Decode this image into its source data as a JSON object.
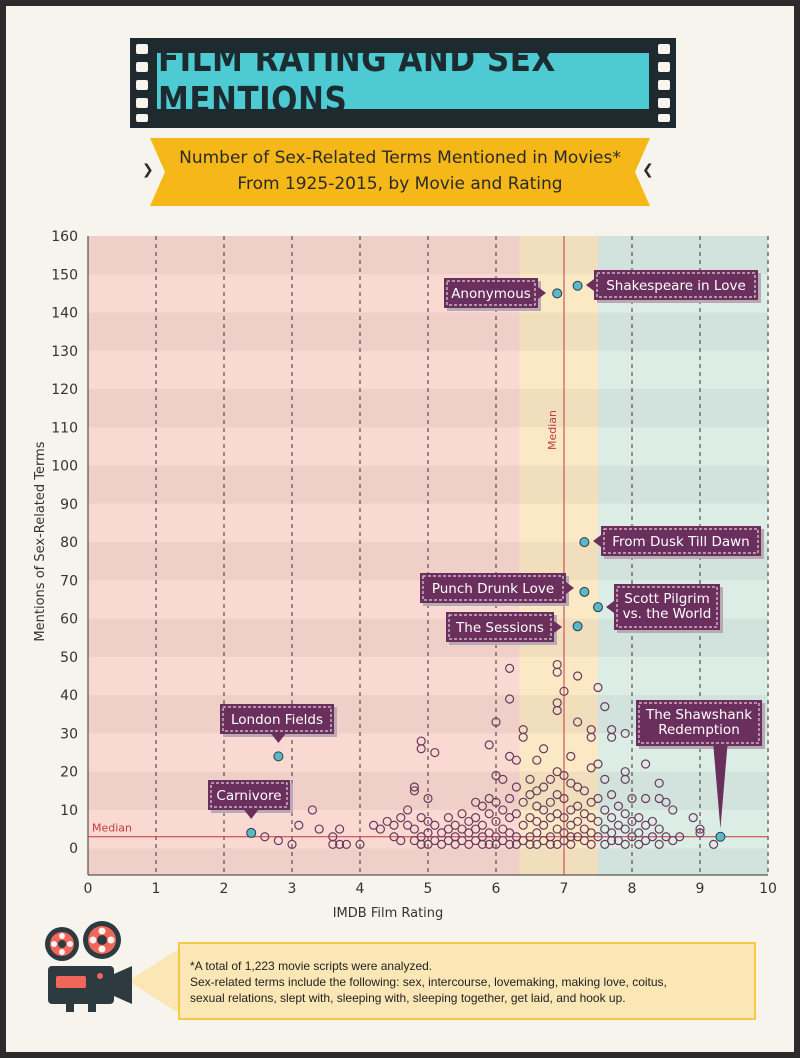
{
  "title": "FILM RATING AND SEX MENTIONS",
  "subtitle_line1": "Number of Sex-Related Terms Mentioned in Movies*",
  "subtitle_line2": "From 1925-2015, by Movie and Rating",
  "footnote_line1": "*A total of 1,223 movie scripts were analyzed.",
  "footnote_line2": "Sex-related terms include the following: sex, intercourse, lovemaking, making love, coitus,",
  "footnote_line3": "sexual relations, slept with, sleeping with, sleeping together, get laid, and hook up.",
  "colors": {
    "zone_low": "#fbd9d3",
    "zone_mid": "#fbe9c6",
    "zone_high": "#dcede6",
    "point_stroke": "#6a3a5c",
    "highlight_point": "#5bb8c9",
    "callout": "#6b2f5e",
    "median_line": "#c23b3b",
    "banner": "#4ecad2"
  },
  "chart_data": {
    "type": "scatter",
    "xlabel": "IMDB Film Rating",
    "ylabel": "Mentions of Sex-Related Terms",
    "xlim": [
      0,
      10
    ],
    "ylim": [
      -7,
      160
    ],
    "x_ticks": [
      0,
      1,
      2,
      3,
      4,
      5,
      6,
      7,
      8,
      9,
      10
    ],
    "y_ticks": [
      0,
      10,
      20,
      30,
      40,
      50,
      60,
      70,
      80,
      90,
      100,
      110,
      120,
      130,
      140,
      150,
      160
    ],
    "median_x": 7,
    "median_x_label": "Median",
    "median_y": 3,
    "median_y_label": "Median",
    "zones": [
      {
        "from": 0,
        "to": 6.35,
        "color": "#fbd9d3"
      },
      {
        "from": 6.35,
        "to": 7.5,
        "color": "#fbe9c6"
      },
      {
        "from": 7.5,
        "to": 10,
        "color": "#dcede6"
      }
    ],
    "highlights": [
      {
        "label": "Shakespeare in Love",
        "x": 7.2,
        "y": 147
      },
      {
        "label": "Anonymous",
        "x": 6.9,
        "y": 145
      },
      {
        "label": "From Dusk Till Dawn",
        "x": 7.3,
        "y": 80
      },
      {
        "label": "Punch Drunk Love",
        "x": 7.3,
        "y": 67
      },
      {
        "label": "Scott Pilgrim vs. the World",
        "x": 7.5,
        "y": 63
      },
      {
        "label": "The Sessions",
        "x": 7.2,
        "y": 58
      },
      {
        "label": "London Fields",
        "x": 2.8,
        "y": 24
      },
      {
        "label": "Carnivore",
        "x": 2.4,
        "y": 4
      },
      {
        "label": "The Shawshank Redemption",
        "x": 9.3,
        "y": 3
      }
    ],
    "points": [
      [
        2.6,
        3
      ],
      [
        2.8,
        2
      ],
      [
        3.0,
        1
      ],
      [
        3.1,
        6
      ],
      [
        3.3,
        10
      ],
      [
        3.4,
        5
      ],
      [
        3.6,
        3
      ],
      [
        3.6,
        1
      ],
      [
        3.7,
        5
      ],
      [
        3.7,
        1
      ],
      [
        3.8,
        1
      ],
      [
        4.0,
        1
      ],
      [
        4.2,
        6
      ],
      [
        4.3,
        5
      ],
      [
        4.4,
        7
      ],
      [
        4.5,
        6
      ],
      [
        4.5,
        3
      ],
      [
        4.6,
        2
      ],
      [
        4.6,
        8
      ],
      [
        4.7,
        10
      ],
      [
        4.7,
        6
      ],
      [
        4.8,
        16
      ],
      [
        4.8,
        15
      ],
      [
        4.8,
        5
      ],
      [
        4.8,
        2
      ],
      [
        4.9,
        28
      ],
      [
        4.9,
        26
      ],
      [
        4.9,
        8
      ],
      [
        4.9,
        3
      ],
      [
        4.9,
        1
      ],
      [
        5.0,
        13
      ],
      [
        5.0,
        7
      ],
      [
        5.0,
        4
      ],
      [
        5.0,
        1
      ],
      [
        5.1,
        25
      ],
      [
        5.1,
        6
      ],
      [
        5.1,
        2
      ],
      [
        5.2,
        4
      ],
      [
        5.2,
        1
      ],
      [
        5.3,
        8
      ],
      [
        5.3,
        5
      ],
      [
        5.3,
        2
      ],
      [
        5.4,
        6
      ],
      [
        5.4,
        3
      ],
      [
        5.4,
        1
      ],
      [
        5.5,
        9
      ],
      [
        5.5,
        5
      ],
      [
        5.5,
        2
      ],
      [
        5.6,
        7
      ],
      [
        5.6,
        4
      ],
      [
        5.6,
        1
      ],
      [
        5.7,
        12
      ],
      [
        5.7,
        8
      ],
      [
        5.7,
        5
      ],
      [
        5.7,
        2
      ],
      [
        5.8,
        11
      ],
      [
        5.8,
        6
      ],
      [
        5.8,
        3
      ],
      [
        5.8,
        1
      ],
      [
        5.9,
        27
      ],
      [
        5.9,
        13
      ],
      [
        5.9,
        9
      ],
      [
        5.9,
        4
      ],
      [
        5.9,
        1
      ],
      [
        6.0,
        33
      ],
      [
        6.0,
        19
      ],
      [
        6.0,
        12
      ],
      [
        6.0,
        7
      ],
      [
        6.0,
        3
      ],
      [
        6.0,
        1
      ],
      [
        6.1,
        18
      ],
      [
        6.1,
        10
      ],
      [
        6.1,
        5
      ],
      [
        6.1,
        2
      ],
      [
        6.2,
        47
      ],
      [
        6.2,
        39
      ],
      [
        6.2,
        24
      ],
      [
        6.2,
        13
      ],
      [
        6.2,
        8
      ],
      [
        6.2,
        4
      ],
      [
        6.2,
        1
      ],
      [
        6.3,
        23
      ],
      [
        6.3,
        16
      ],
      [
        6.3,
        9
      ],
      [
        6.3,
        3
      ],
      [
        6.3,
        1
      ],
      [
        6.4,
        31
      ],
      [
        6.4,
        29
      ],
      [
        6.4,
        12
      ],
      [
        6.4,
        6
      ],
      [
        6.4,
        2
      ],
      [
        6.5,
        18
      ],
      [
        6.5,
        14
      ],
      [
        6.5,
        8
      ],
      [
        6.5,
        3
      ],
      [
        6.5,
        1
      ],
      [
        6.6,
        23
      ],
      [
        6.6,
        15
      ],
      [
        6.6,
        11
      ],
      [
        6.6,
        7
      ],
      [
        6.6,
        4
      ],
      [
        6.6,
        1
      ],
      [
        6.7,
        26
      ],
      [
        6.7,
        16
      ],
      [
        6.7,
        10
      ],
      [
        6.7,
        6
      ],
      [
        6.7,
        2
      ],
      [
        6.8,
        18
      ],
      [
        6.8,
        12
      ],
      [
        6.8,
        8
      ],
      [
        6.8,
        3
      ],
      [
        6.8,
        1
      ],
      [
        6.9,
        48
      ],
      [
        6.9,
        46
      ],
      [
        6.9,
        38
      ],
      [
        6.9,
        36
      ],
      [
        6.9,
        20
      ],
      [
        6.9,
        14
      ],
      [
        6.9,
        9
      ],
      [
        6.9,
        5
      ],
      [
        6.9,
        1
      ],
      [
        7.0,
        41
      ],
      [
        7.0,
        19
      ],
      [
        7.0,
        13
      ],
      [
        7.0,
        8
      ],
      [
        7.0,
        4
      ],
      [
        7.0,
        2
      ],
      [
        7.1,
        24
      ],
      [
        7.1,
        17
      ],
      [
        7.1,
        10
      ],
      [
        7.1,
        6
      ],
      [
        7.1,
        3
      ],
      [
        7.1,
        1
      ],
      [
        7.2,
        45
      ],
      [
        7.2,
        33
      ],
      [
        7.2,
        16
      ],
      [
        7.2,
        11
      ],
      [
        7.2,
        7
      ],
      [
        7.2,
        3
      ],
      [
        7.3,
        15
      ],
      [
        7.3,
        9
      ],
      [
        7.3,
        5
      ],
      [
        7.3,
        2
      ],
      [
        7.4,
        31
      ],
      [
        7.4,
        29
      ],
      [
        7.4,
        21
      ],
      [
        7.4,
        12
      ],
      [
        7.4,
        8
      ],
      [
        7.4,
        4
      ],
      [
        7.4,
        1
      ],
      [
        7.5,
        42
      ],
      [
        7.5,
        22
      ],
      [
        7.5,
        13
      ],
      [
        7.5,
        7
      ],
      [
        7.5,
        3
      ],
      [
        7.6,
        37
      ],
      [
        7.6,
        18
      ],
      [
        7.6,
        10
      ],
      [
        7.6,
        5
      ],
      [
        7.6,
        1
      ],
      [
        7.7,
        31
      ],
      [
        7.7,
        29
      ],
      [
        7.7,
        14
      ],
      [
        7.7,
        8
      ],
      [
        7.7,
        4
      ],
      [
        7.7,
        2
      ],
      [
        7.8,
        11
      ],
      [
        7.8,
        6
      ],
      [
        7.8,
        2
      ],
      [
        7.9,
        30
      ],
      [
        7.9,
        20
      ],
      [
        7.9,
        18
      ],
      [
        7.9,
        9
      ],
      [
        7.9,
        5
      ],
      [
        7.9,
        1
      ],
      [
        8.0,
        13
      ],
      [
        8.0,
        7
      ],
      [
        8.0,
        3
      ],
      [
        8.1,
        8
      ],
      [
        8.1,
        4
      ],
      [
        8.1,
        1
      ],
      [
        8.2,
        22
      ],
      [
        8.2,
        13
      ],
      [
        8.2,
        6
      ],
      [
        8.2,
        2
      ],
      [
        8.3,
        7
      ],
      [
        8.3,
        3
      ],
      [
        8.4,
        17
      ],
      [
        8.4,
        13
      ],
      [
        8.4,
        5
      ],
      [
        8.4,
        1
      ],
      [
        8.5,
        12
      ],
      [
        8.5,
        3
      ],
      [
        8.6,
        10
      ],
      [
        8.6,
        2
      ],
      [
        8.7,
        3
      ],
      [
        8.9,
        8
      ],
      [
        9.0,
        4
      ],
      [
        9.0,
        5
      ],
      [
        9.2,
        1
      ]
    ]
  }
}
